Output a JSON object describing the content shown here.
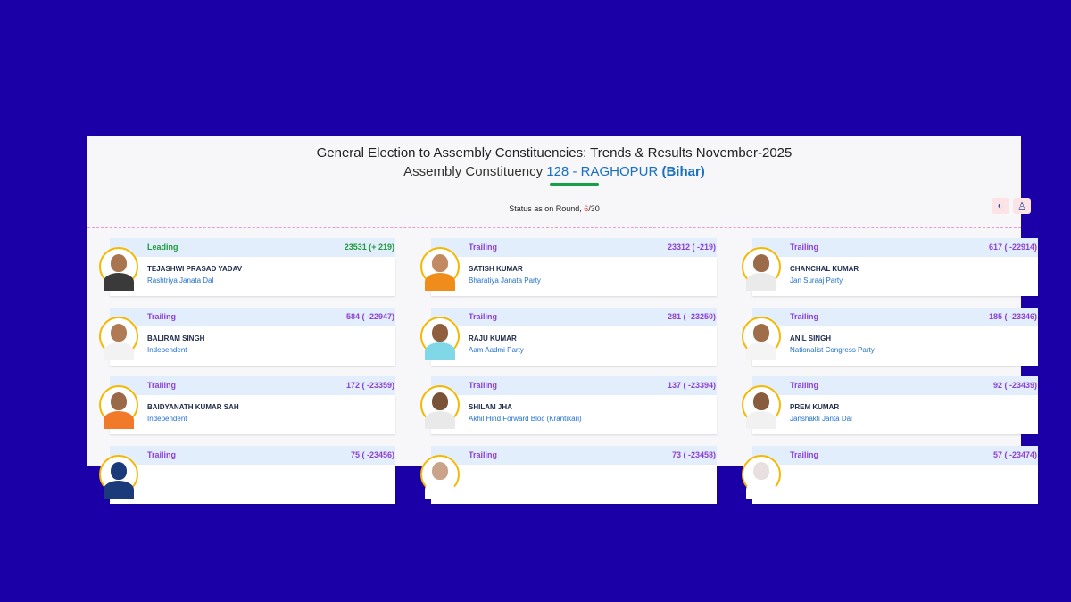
{
  "header": {
    "title_line1": "General Election to Assembly Constituencies: Trends & Results November-2025",
    "title_prefix": "Assembly Constituency",
    "constituency_number": "128 - RAGHOPUR",
    "state": "(Bihar)",
    "status_prefix": "Status as on Round,",
    "round_current": "6",
    "round_total": "/30"
  },
  "tools": [
    {
      "icon": "globe-icon",
      "glyph": "◐"
    },
    {
      "icon": "user-icon",
      "glyph": "♙"
    }
  ],
  "colors": {
    "background": "#1b00a8",
    "leading": "#1d9a3c",
    "trailing": "#8b3fd4",
    "party": "#1f6fd0",
    "avatar_ring": "#f5b800"
  },
  "candidates": [
    {
      "status": "Leading",
      "votes": "23531 (+ 219)",
      "name": "TEJASHWI PRASAD YADAV",
      "party": "Rashtriya Janata Dal",
      "skin": "#a8754f",
      "cloth": "#3a3a3a"
    },
    {
      "status": "Trailing",
      "votes": "23312 ( -219)",
      "name": "SATISH KUMAR",
      "party": "Bharatiya Janata Party",
      "skin": "#c18a63",
      "cloth": "#f08c1a"
    },
    {
      "status": "Trailing",
      "votes": "617 ( -22914)",
      "name": "CHANCHAL KUMAR",
      "party": "Jan Suraaj Party",
      "skin": "#9b6b49",
      "cloth": "#eaeaea"
    },
    {
      "status": "Trailing",
      "votes": "584 ( -22947)",
      "name": "BALIRAM SINGH",
      "party": "Independent",
      "skin": "#b07a55",
      "cloth": "#f2f2f2"
    },
    {
      "status": "Trailing",
      "votes": "281 ( -23250)",
      "name": "RAJU KUMAR",
      "party": "Aam Aadmi Party",
      "skin": "#8f5e3f",
      "cloth": "#7fd7e8"
    },
    {
      "status": "Trailing",
      "votes": "185 ( -23346)",
      "name": "ANIL SINGH",
      "party": "Nationalist Congress Party",
      "skin": "#a06d4a",
      "cloth": "#f4f4f4"
    },
    {
      "status": "Trailing",
      "votes": "172 ( -23359)",
      "name": "BAIDYANATH KUMAR SAH",
      "party": "Independent",
      "skin": "#9a6a48",
      "cloth": "#f07a2a"
    },
    {
      "status": "Trailing",
      "votes": "137 ( -23394)",
      "name": "SHILAM JHA",
      "party": "Akhil Hind Forward Bloc (Krantikari)",
      "skin": "#7a5238",
      "cloth": "#e9e9e9"
    },
    {
      "status": "Trailing",
      "votes": "92 ( -23439)",
      "name": "PREM KUMAR",
      "party": "Janshakti Janta Dal",
      "skin": "#8a5c3e",
      "cloth": "#f1f1f1"
    },
    {
      "status": "Trailing",
      "votes": "75 ( -23456)",
      "name": "",
      "party": "",
      "skin": "#1b3a7a",
      "cloth": "#1b3a7a"
    },
    {
      "status": "Trailing",
      "votes": "73 ( -23458)",
      "name": "",
      "party": "",
      "skin": "#c9a48a",
      "cloth": "#ffffff"
    },
    {
      "status": "Trailing",
      "votes": "57 ( -23474)",
      "name": "",
      "party": "",
      "skin": "#e8e0e0",
      "cloth": "#ffffff"
    }
  ]
}
